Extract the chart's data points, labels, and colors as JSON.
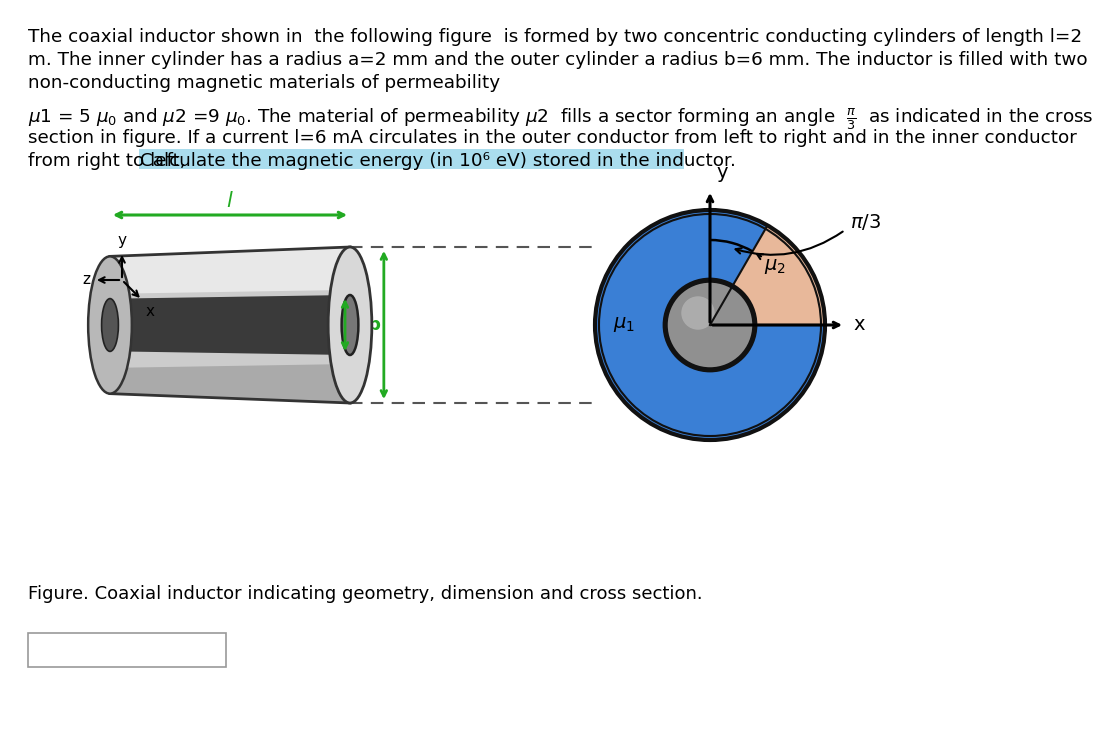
{
  "bg_color": "#ffffff",
  "text_color": "#000000",
  "highlight_color": "#aaddee",
  "green_color": "#22aa22",
  "blue_color": "#3a7fd5",
  "peach_color": "#e8b89a",
  "line1": "The coaxial inductor shown in  the following figure  is formed by two concentric conducting cylinders of length l=2",
  "line2": "m. The inner cylinder has a radius a=2 mm and the outer cylinder a radius b=6 mm. The inductor is filled with two",
  "line3": "non-conducting magnetic materials of permeability",
  "line4_before": "1 = 5 ",
  "line4_mid": "and ",
  "line4_mid2": "2 =9 ",
  "line4_after": ". The material of permeability ",
  "line4_mu2": "2  fills a sector forming an angle",
  "line4_end": " as indicated in the cross",
  "line5": "section in figure. If a current l=6 mA circulates in the outer conductor from left to right and in the inner conductor",
  "line6a": "from right to left, ",
  "line6b": "Calculate the magnetic energy (in 10⁶ eV) stored in the inductor.",
  "fig_caption": "Figure. Coaxial inductor indicating geometry, dimension and cross section."
}
